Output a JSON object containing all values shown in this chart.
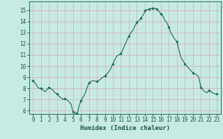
{
  "title": "",
  "xlabel": "Humidex (Indice chaleur)",
  "ylabel": "",
  "background_color": "#c8eae4",
  "grid_color": "#d4a8a8",
  "line_color": "#1a6655",
  "marker_color": "#1a6655",
  "xlim": [
    -0.5,
    23.5
  ],
  "ylim": [
    5.7,
    15.8
  ],
  "yticks": [
    6,
    7,
    8,
    9,
    10,
    11,
    12,
    13,
    14,
    15
  ],
  "xticks": [
    0,
    1,
    2,
    3,
    4,
    5,
    6,
    7,
    8,
    9,
    10,
    11,
    12,
    13,
    14,
    15,
    16,
    17,
    18,
    19,
    20,
    21,
    22,
    23
  ],
  "x": [
    0,
    0.25,
    0.5,
    0.75,
    1,
    1.25,
    1.5,
    1.75,
    2,
    2.25,
    2.5,
    2.75,
    3,
    3.25,
    3.5,
    3.75,
    4,
    4.25,
    4.5,
    4.75,
    5,
    5.1,
    5.2,
    5.3,
    5.4,
    5.5,
    5.6,
    5.7,
    5.8,
    5.9,
    6,
    6.25,
    6.5,
    6.75,
    7,
    7.25,
    7.5,
    7.75,
    8,
    8.25,
    8.5,
    8.75,
    9,
    9.25,
    9.5,
    9.75,
    10,
    10.25,
    10.5,
    10.75,
    11,
    11.25,
    11.5,
    11.75,
    12,
    12.25,
    12.5,
    12.75,
    13,
    13.1,
    13.2,
    13.3,
    13.4,
    13.5,
    13.6,
    13.7,
    13.8,
    13.9,
    14,
    14.25,
    14.5,
    14.75,
    15,
    15.25,
    15.5,
    15.75,
    16,
    16.25,
    16.5,
    16.75,
    17,
    17.25,
    17.5,
    17.75,
    18,
    18.25,
    18.5,
    18.75,
    19,
    19.25,
    19.5,
    19.75,
    20,
    20.25,
    20.5,
    20.75,
    21,
    21.25,
    21.5,
    21.75,
    22,
    22.25,
    22.5,
    22.75,
    23
  ],
  "y": [
    8.7,
    8.5,
    8.2,
    8.0,
    8.0,
    7.85,
    7.7,
    7.9,
    8.1,
    7.95,
    7.85,
    7.6,
    7.5,
    7.3,
    7.15,
    7.0,
    7.1,
    6.95,
    6.8,
    6.6,
    5.9,
    5.85,
    5.8,
    5.77,
    5.75,
    5.77,
    5.9,
    6.2,
    6.5,
    6.7,
    6.9,
    7.2,
    7.5,
    8.0,
    8.5,
    8.6,
    8.7,
    8.65,
    8.6,
    8.7,
    8.85,
    9.0,
    9.1,
    9.3,
    9.5,
    9.8,
    10.2,
    10.6,
    10.9,
    11.0,
    11.1,
    11.5,
    11.9,
    12.3,
    12.7,
    13.0,
    13.2,
    13.6,
    13.9,
    14.0,
    14.05,
    14.1,
    14.15,
    14.3,
    14.4,
    14.5,
    14.6,
    14.7,
    15.0,
    15.05,
    15.1,
    15.15,
    15.2,
    15.18,
    15.1,
    14.9,
    14.7,
    14.5,
    14.1,
    13.9,
    13.5,
    13.0,
    12.7,
    12.4,
    12.2,
    11.5,
    10.8,
    10.5,
    10.2,
    10.0,
    9.8,
    9.6,
    9.4,
    9.3,
    9.2,
    9.0,
    8.1,
    7.9,
    7.7,
    7.6,
    7.8,
    7.7,
    7.6,
    7.5,
    7.5
  ],
  "marker_x": [
    0,
    1,
    2,
    3,
    4,
    5,
    5.5,
    6,
    7,
    8,
    9,
    10,
    11,
    12,
    13,
    13.5,
    14,
    14.5,
    15,
    15.5,
    16,
    17,
    18,
    19,
    20,
    21,
    22,
    23
  ],
  "marker_y": [
    8.7,
    8.0,
    8.1,
    7.5,
    7.1,
    5.9,
    5.77,
    6.9,
    8.5,
    8.6,
    9.1,
    10.2,
    11.1,
    12.7,
    13.9,
    14.3,
    15.0,
    15.1,
    15.2,
    15.1,
    14.7,
    13.5,
    12.2,
    10.2,
    9.4,
    8.1,
    7.8,
    7.5
  ]
}
